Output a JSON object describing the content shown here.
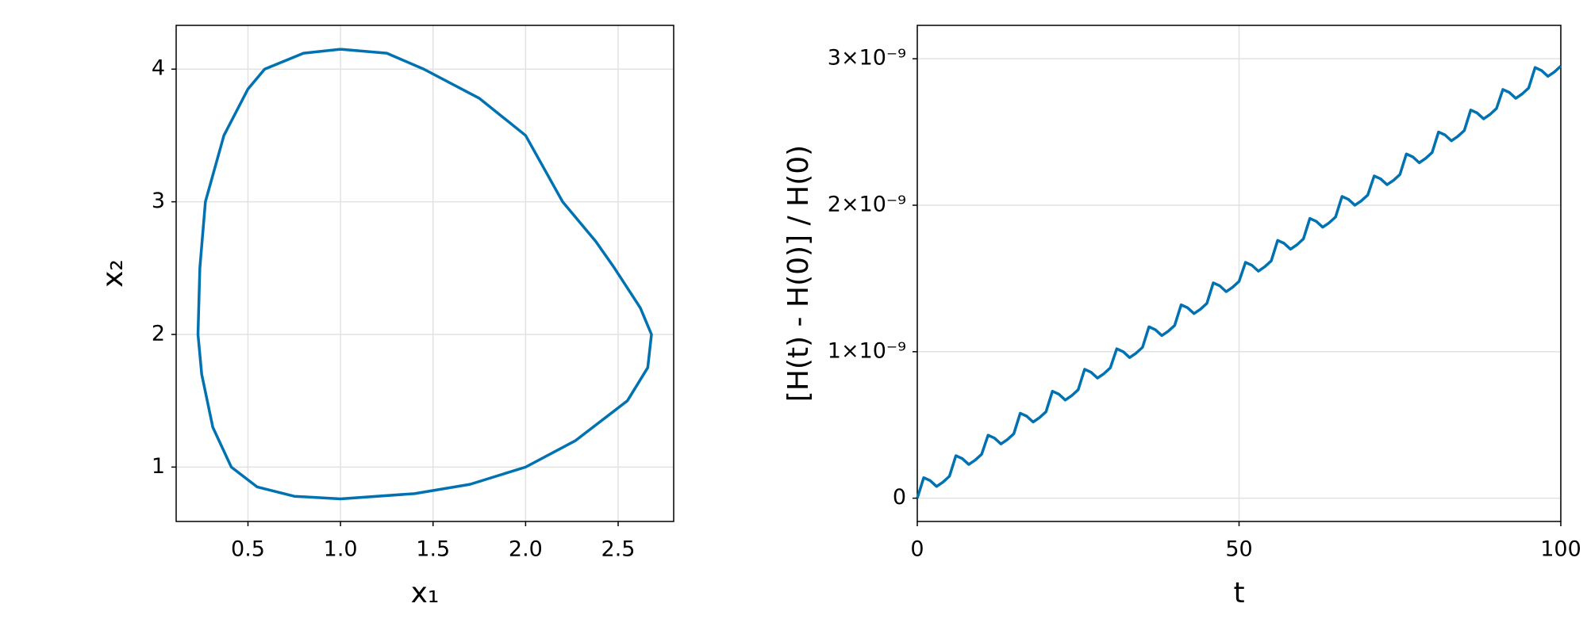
{
  "chart_data": [
    {
      "type": "line",
      "x_label": "x₁",
      "y_label": "x₂",
      "color": "#0072b2",
      "grid": true,
      "xlim": [
        0.112,
        2.8
      ],
      "ylim": [
        0.59,
        4.33
      ],
      "xticks": [
        0.5,
        {
          "value": 1,
          "label": "1.0"
        },
        1.5,
        {
          "value": 2,
          "label": "2.0"
        },
        2.5
      ],
      "yticks": [
        1,
        2,
        3,
        4
      ],
      "x": [
        1.0,
        1.25,
        1.45,
        1.75,
        2.0,
        2.2,
        2.38,
        2.48,
        2.62,
        2.68,
        2.66,
        2.55,
        2.27,
        2.0,
        1.7,
        1.4,
        1.0,
        0.75,
        0.55,
        0.41,
        0.31,
        0.25,
        0.23,
        0.24,
        0.27,
        0.37,
        0.5,
        0.59,
        0.8,
        1.0
      ],
      "values": [
        4.15,
        4.12,
        4.0,
        3.78,
        3.5,
        3.0,
        2.7,
        2.5,
        2.2,
        2.0,
        1.75,
        1.5,
        1.2,
        1.0,
        0.87,
        0.8,
        0.76,
        0.78,
        0.85,
        1.0,
        1.3,
        1.7,
        2.0,
        2.5,
        3.0,
        3.5,
        3.85,
        4.0,
        4.12,
        4.15
      ]
    },
    {
      "type": "line",
      "x_label": "t",
      "y_label": "[H(t) - H(0)] / H(0)",
      "color": "#0072b2",
      "grid": true,
      "xlim": [
        0,
        100
      ],
      "ylim": [
        -1.59e-10,
        3.228e-09
      ],
      "xticks": [
        0,
        50,
        100
      ],
      "yticks": [
        0,
        {
          "value": 1e-09,
          "label": "1×10⁻⁹"
        },
        {
          "value": 2e-09,
          "label": "2×10⁻⁹"
        },
        {
          "value": 3e-09,
          "label": "3×10⁻⁹"
        }
      ],
      "x": [
        0,
        1,
        2,
        3,
        4,
        5,
        6,
        7,
        8,
        9,
        10,
        11,
        12,
        13,
        14,
        15,
        16,
        17,
        18,
        19,
        20,
        21,
        22,
        23,
        24,
        25,
        26,
        27,
        28,
        29,
        30,
        31,
        32,
        33,
        34,
        35,
        36,
        37,
        38,
        39,
        40,
        41,
        42,
        43,
        44,
        45,
        46,
        47,
        48,
        49,
        50,
        51,
        52,
        53,
        54,
        55,
        56,
        57,
        58,
        59,
        60,
        61,
        62,
        63,
        64,
        65,
        66,
        67,
        68,
        69,
        70,
        71,
        72,
        73,
        74,
        75,
        76,
        77,
        78,
        79,
        80,
        81,
        82,
        83,
        84,
        85,
        86,
        87,
        88,
        89,
        90,
        91,
        92,
        93,
        94,
        95,
        96,
        97,
        98,
        99,
        100
      ],
      "values": [
        0.0,
        1.4e-10,
        1.2e-10,
        8e-11,
        1.1e-10,
        1.5e-10,
        2.9e-10,
        2.7e-10,
        2.3e-10,
        2.6e-10,
        3e-10,
        4.3e-10,
        4.1e-10,
        3.7e-10,
        4e-10,
        4.4e-10,
        5.8e-10,
        5.6e-10,
        5.2e-10,
        5.5e-10,
        5.9e-10,
        7.3e-10,
        7.1e-10,
        6.7e-10,
        7e-10,
        7.4e-10,
        8.8e-10,
        8.6e-10,
        8.2e-10,
        8.5e-10,
        8.9e-10,
        1.02e-09,
        1e-09,
        9.6e-10,
        9.9e-10,
        1.03e-09,
        1.17e-09,
        1.15e-09,
        1.11e-09,
        1.14e-09,
        1.18e-09,
        1.32e-09,
        1.3e-09,
        1.26e-09,
        1.29e-09,
        1.33e-09,
        1.47e-09,
        1.45e-09,
        1.41e-09,
        1.44e-09,
        1.48e-09,
        1.61e-09,
        1.59e-09,
        1.55e-09,
        1.58e-09,
        1.62e-09,
        1.76e-09,
        1.74e-09,
        1.7e-09,
        1.73e-09,
        1.77e-09,
        1.91e-09,
        1.89e-09,
        1.85e-09,
        1.88e-09,
        1.92e-09,
        2.06e-09,
        2.04e-09,
        2e-09,
        2.03e-09,
        2.07e-09,
        2.2e-09,
        2.18e-09,
        2.14e-09,
        2.17e-09,
        2.21e-09,
        2.35e-09,
        2.33e-09,
        2.29e-09,
        2.32e-09,
        2.36e-09,
        2.5e-09,
        2.48e-09,
        2.44e-09,
        2.47e-09,
        2.51e-09,
        2.65e-09,
        2.63e-09,
        2.59e-09,
        2.62e-09,
        2.66e-09,
        2.79e-09,
        2.77e-09,
        2.73e-09,
        2.76e-09,
        2.8e-09,
        2.94e-09,
        2.92e-09,
        2.88e-09,
        2.91e-09,
        2.95e-09
      ]
    }
  ]
}
